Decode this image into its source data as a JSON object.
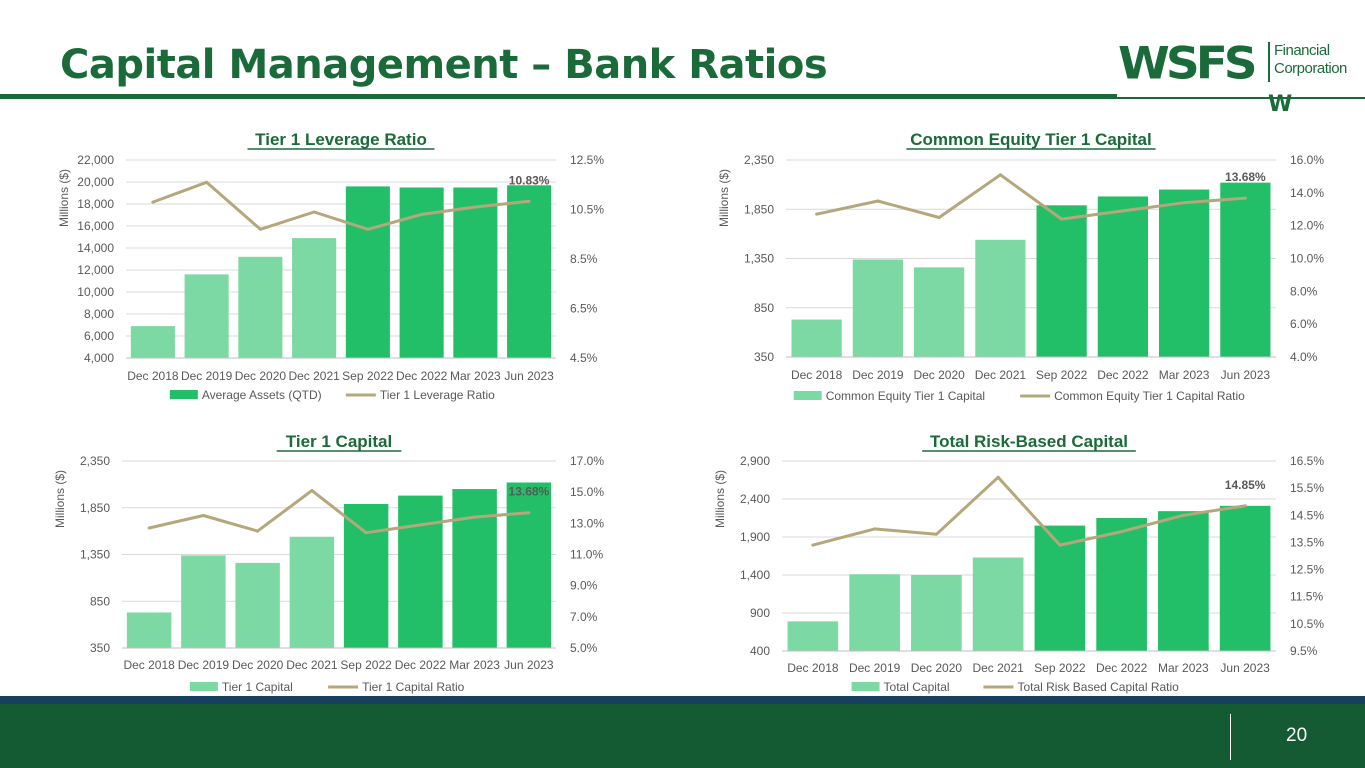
{
  "slide": {
    "title": "Capital Management – Bank Ratios",
    "page_number": "20",
    "logo": {
      "main": "WSFS",
      "sub_line1": "Financial",
      "sub_line2": "Corporation",
      "mark": "W"
    }
  },
  "colors": {
    "brand_green": "#1b6b3a",
    "bar_dark": "#22bf68",
    "bar_light": "#7dd9a3",
    "line": "#b5a77c",
    "footer": "#145a32",
    "footer_line": "#173f5f"
  },
  "chart_data": [
    {
      "type": "bar",
      "title": "Tier 1 Leverage Ratio",
      "ylabel": "Millions ($)",
      "categories": [
        "Dec 2018",
        "Dec 2019",
        "Dec 2020",
        "Dec 2021",
        "Sep 2022",
        "Dec 2022",
        "Mar 2023",
        "Jun 2023"
      ],
      "y_ticks": [
        "4,000",
        "6,000",
        "8,000",
        "10,000",
        "12,000",
        "14,000",
        "16,000",
        "18,000",
        "20,000",
        "22,000"
      ],
      "ylim": [
        4000,
        22000
      ],
      "y2_ticks": [
        "4.5%",
        "6.5%",
        "8.5%",
        "10.5%",
        "12.5%"
      ],
      "y2lim": [
        4.5,
        12.5
      ],
      "grid": true,
      "legend_position": "bottom",
      "series": [
        {
          "name": "Average Assets (QTD)",
          "type": "bar",
          "axis": "left",
          "values": [
            6900,
            11600,
            13200,
            14900,
            19600,
            19500,
            19500,
            19700
          ]
        },
        {
          "name": "Tier 1 Leverage Ratio",
          "type": "line",
          "axis": "right",
          "values": [
            10.8,
            11.6,
            9.7,
            10.4,
            9.7,
            10.3,
            10.6,
            10.83
          ]
        }
      ],
      "annotation": "10.83%"
    },
    {
      "type": "bar",
      "title": "Common Equity Tier 1 Capital",
      "ylabel": "Millions ($)",
      "categories": [
        "Dec 2018",
        "Dec 2019",
        "Dec 2020",
        "Dec 2021",
        "Sep 2022",
        "Dec 2022",
        "Mar 2023",
        "Jun 2023"
      ],
      "y_ticks": [
        "350",
        "850",
        "1,350",
        "1,850",
        "2,350"
      ],
      "ylim": [
        350,
        2350
      ],
      "y2_ticks": [
        "4.0%",
        "6.0%",
        "8.0%",
        "10.0%",
        "12.0%",
        "14.0%",
        "16.0%"
      ],
      "y2lim": [
        4,
        16
      ],
      "grid": true,
      "legend_position": "bottom",
      "series": [
        {
          "name": "Common Equity Tier 1 Capital",
          "type": "bar",
          "axis": "left",
          "values": [
            730,
            1340,
            1260,
            1540,
            1890,
            1980,
            2050,
            2120
          ]
        },
        {
          "name": "Common Equity Tier 1 Capital Ratio",
          "type": "line",
          "axis": "right",
          "values": [
            12.7,
            13.5,
            12.5,
            15.1,
            12.4,
            12.9,
            13.4,
            13.68
          ]
        }
      ],
      "annotation": "13.68%"
    },
    {
      "type": "bar",
      "title": "Tier 1 Capital",
      "ylabel": "Millions ($)",
      "categories": [
        "Dec 2018",
        "Dec 2019",
        "Dec 2020",
        "Dec 2021",
        "Sep 2022",
        "Dec 2022",
        "Mar 2023",
        "Jun 2023"
      ],
      "y_ticks": [
        "350",
        "850",
        "1,350",
        "1,850",
        "2,350"
      ],
      "ylim": [
        350,
        2350
      ],
      "y2_ticks": [
        "5.0%",
        "7.0%",
        "9.0%",
        "11.0%",
        "13.0%",
        "15.0%",
        "17.0%"
      ],
      "y2lim": [
        5,
        17
      ],
      "grid": true,
      "legend_position": "bottom",
      "series": [
        {
          "name": "Tier 1 Capital",
          "type": "bar",
          "axis": "left",
          "values": [
            730,
            1340,
            1260,
            1540,
            1890,
            1980,
            2050,
            2120
          ]
        },
        {
          "name": "Tier 1 Capital Ratio",
          "type": "line",
          "axis": "right",
          "values": [
            12.7,
            13.5,
            12.5,
            15.1,
            12.4,
            12.9,
            13.4,
            13.68
          ]
        }
      ],
      "annotation": "13.68%"
    },
    {
      "type": "bar",
      "title": "Total Risk-Based Capital",
      "ylabel": "Millions ($)",
      "categories": [
        "Dec 2018",
        "Dec 2019",
        "Dec 2020",
        "Dec 2021",
        "Sep 2022",
        "Dec 2022",
        "Mar 2023",
        "Jun 2023"
      ],
      "y_ticks": [
        "400",
        "900",
        "1,400",
        "1,900",
        "2,400",
        "2,900"
      ],
      "ylim": [
        400,
        2900
      ],
      "y2_ticks": [
        "9.5%",
        "10.5%",
        "11.5%",
        "12.5%",
        "13.5%",
        "14.5%",
        "15.5%",
        "16.5%"
      ],
      "y2lim": [
        9.5,
        16.5
      ],
      "grid": true,
      "legend_position": "bottom",
      "series": [
        {
          "name": "Total Capital",
          "type": "bar",
          "axis": "left",
          "values": [
            790,
            1410,
            1400,
            1630,
            2050,
            2150,
            2240,
            2310
          ]
        },
        {
          "name": "Total Risk Based Capital Ratio",
          "type": "line",
          "axis": "right",
          "values": [
            13.4,
            14.0,
            13.8,
            15.9,
            13.4,
            13.9,
            14.5,
            14.85
          ]
        }
      ],
      "annotation": "14.85%"
    }
  ]
}
